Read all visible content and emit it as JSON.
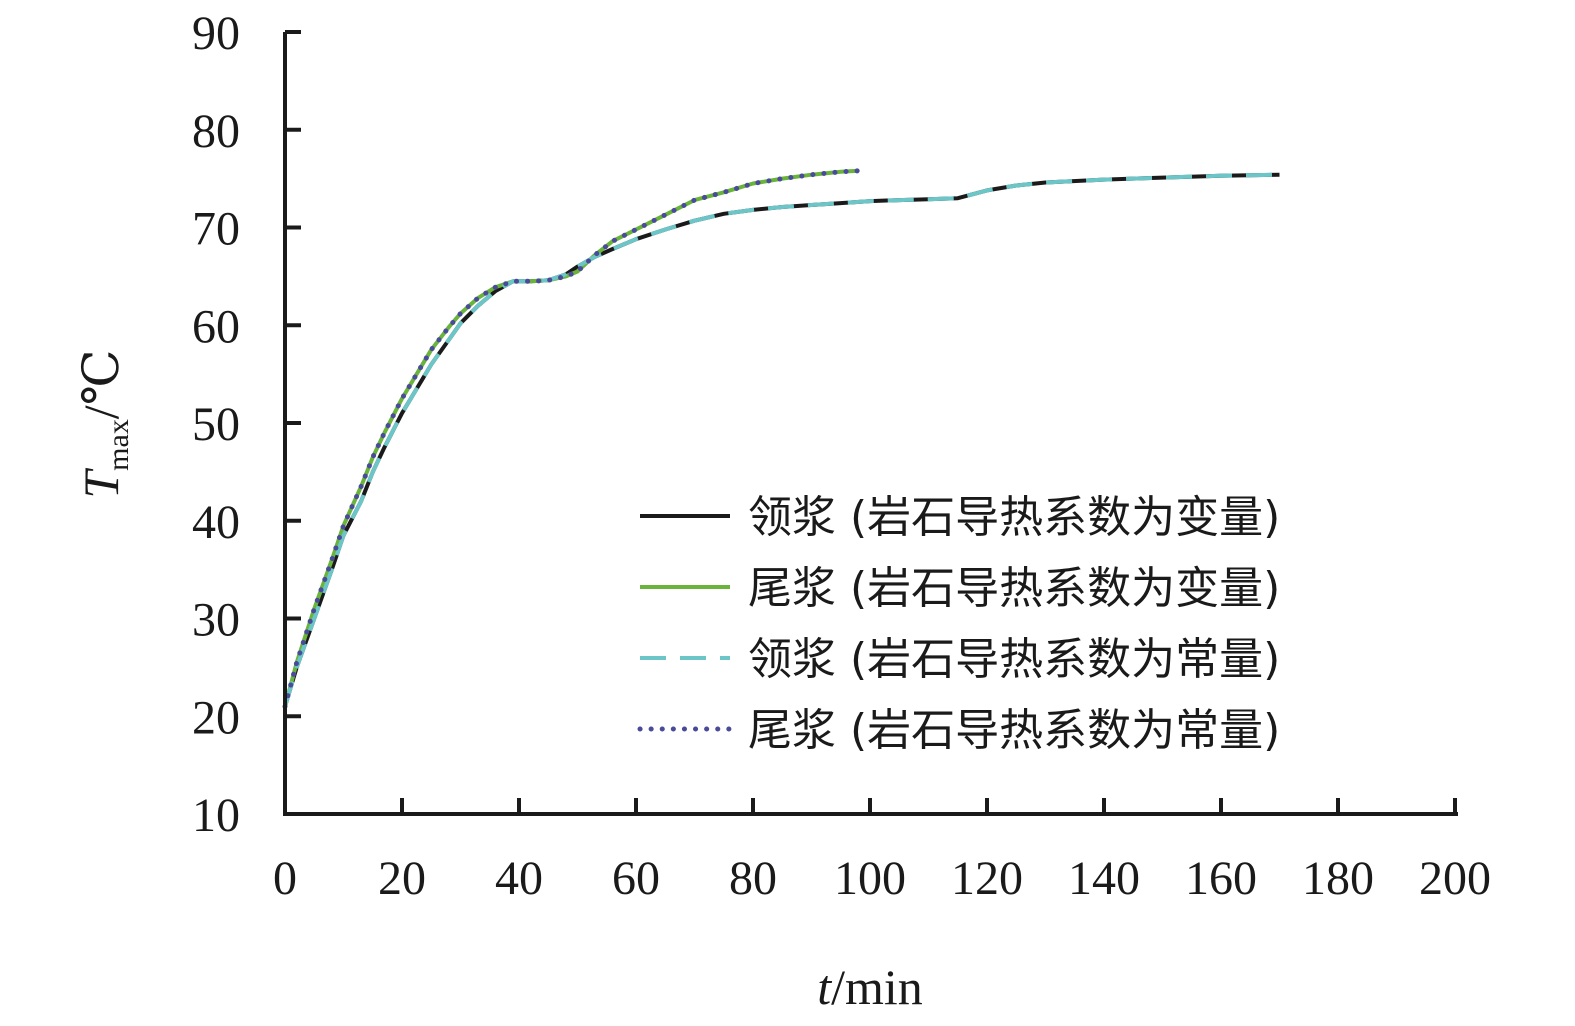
{
  "chart_data": {
    "type": "line",
    "xlabel_var": "t",
    "xlabel_unit": "/min",
    "ylabel_var": "T",
    "ylabel_sub": "max",
    "ylabel_unit": "/℃",
    "xlim": [
      0,
      200
    ],
    "ylim": [
      10,
      90
    ],
    "xticks": [
      0,
      20,
      40,
      60,
      80,
      100,
      120,
      140,
      160,
      180,
      200
    ],
    "yticks": [
      10,
      20,
      30,
      40,
      50,
      60,
      70,
      80,
      90
    ],
    "grid": false,
    "legend_position": "right",
    "series": [
      {
        "name": "领浆 (岩石导热系数为变量)",
        "color": "#1a1a1a",
        "style": "solid",
        "x": [
          0,
          2,
          5,
          8,
          10,
          13,
          15,
          17,
          20,
          23,
          25,
          28,
          30,
          33,
          36,
          39,
          42,
          45,
          48,
          50,
          53,
          56,
          60,
          65,
          70,
          75,
          80,
          85,
          90,
          95,
          100,
          105,
          110,
          115,
          120,
          125,
          130,
          140,
          150,
          160,
          170
        ],
        "y": [
          21,
          25,
          30,
          35,
          38.5,
          42,
          45,
          47.5,
          51,
          54,
          56,
          58.5,
          60.2,
          62,
          63.5,
          64.5,
          64.5,
          64.6,
          65.2,
          66,
          67,
          67.8,
          68.8,
          69.8,
          70.7,
          71.4,
          71.8,
          72.1,
          72.3,
          72.5,
          72.7,
          72.8,
          72.9,
          73,
          73.8,
          74.3,
          74.6,
          74.9,
          75.1,
          75.3,
          75.4
        ]
      },
      {
        "name": "尾浆 (岩石导热系数为变量)",
        "color": "#6ab43c",
        "style": "solid",
        "x": [
          0,
          2,
          5,
          8,
          10,
          13,
          15,
          17,
          20,
          23,
          25,
          28,
          30,
          33,
          36,
          39,
          42,
          45,
          48,
          50,
          53,
          56,
          60,
          65,
          70,
          75,
          80,
          85,
          90,
          95,
          98
        ],
        "y": [
          21,
          25.5,
          31,
          36,
          39.5,
          43.5,
          46.5,
          49,
          52.5,
          55.5,
          57.5,
          59.8,
          61.2,
          62.8,
          63.9,
          64.5,
          64.5,
          64.6,
          65,
          65.5,
          67.2,
          68.6,
          69.8,
          71.3,
          72.8,
          73.6,
          74.5,
          75,
          75.4,
          75.7,
          75.8
        ]
      },
      {
        "name": "领浆 (岩石导热系数为常量)",
        "color": "#6cc6c8",
        "style": "dashed",
        "x": [
          0,
          2,
          5,
          8,
          10,
          13,
          15,
          17,
          20,
          23,
          25,
          28,
          30,
          33,
          36,
          39,
          42,
          45,
          48,
          50,
          53,
          56,
          60,
          65,
          70,
          75,
          80,
          85,
          90,
          95,
          100,
          105,
          110,
          115,
          120,
          125,
          130,
          140,
          150,
          160,
          170
        ],
        "y": [
          21,
          25,
          30,
          35,
          38.5,
          42,
          45,
          47.5,
          51,
          54,
          56,
          58.5,
          60.2,
          62,
          63.5,
          64.5,
          64.5,
          64.6,
          65.2,
          66,
          67,
          67.8,
          68.8,
          69.8,
          70.7,
          71.4,
          71.8,
          72.1,
          72.3,
          72.5,
          72.7,
          72.8,
          72.9,
          73,
          73.8,
          74.3,
          74.6,
          74.9,
          75.1,
          75.3,
          75.4
        ]
      },
      {
        "name": "尾浆 (岩石导热系数为常量)",
        "color": "#4a4a9a",
        "style": "dotted",
        "x": [
          0,
          2,
          5,
          8,
          10,
          13,
          15,
          17,
          20,
          23,
          25,
          28,
          30,
          33,
          36,
          39,
          42,
          45,
          48,
          50,
          53,
          56,
          60,
          65,
          70,
          75,
          80,
          85,
          90,
          95,
          98
        ],
        "y": [
          21,
          25.5,
          31,
          36,
          39.5,
          43.5,
          46.5,
          49,
          52.5,
          55.5,
          57.5,
          59.8,
          61.2,
          62.8,
          63.9,
          64.5,
          64.5,
          64.6,
          65,
          65.5,
          67.2,
          68.6,
          69.8,
          71.3,
          72.8,
          73.6,
          74.5,
          75,
          75.4,
          75.7,
          75.8
        ]
      }
    ]
  }
}
